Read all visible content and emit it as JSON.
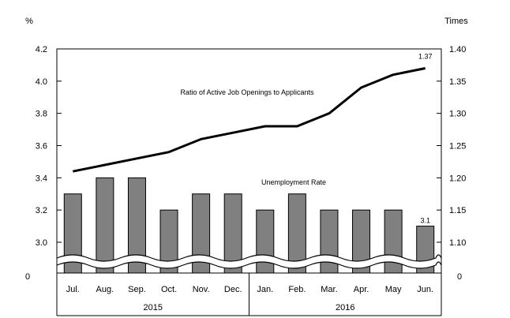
{
  "chart_data": {
    "type": "bar",
    "left_unit": "%",
    "right_unit": "Times",
    "categories": [
      "Jul.",
      "Aug.",
      "Sep.",
      "Oct.",
      "Nov.",
      "Dec.",
      "Jan.",
      "Feb.",
      "Mar.",
      "Apr.",
      "May",
      "Jun."
    ],
    "years": [
      {
        "label": "2015",
        "start": 0,
        "end": 5
      },
      {
        "label": "2016",
        "start": 6,
        "end": 11
      }
    ],
    "series": [
      {
        "name": "Unemployment Rate",
        "type": "bar",
        "axis": "left",
        "values": [
          3.3,
          3.4,
          3.4,
          3.2,
          3.3,
          3.3,
          3.2,
          3.3,
          3.2,
          3.2,
          3.2,
          3.1
        ],
        "color": "#808080"
      },
      {
        "name": "Ratio of Active Job Openings to Applicants",
        "type": "line",
        "axis": "right",
        "values": [
          1.21,
          1.22,
          1.23,
          1.24,
          1.26,
          1.27,
          1.28,
          1.28,
          1.3,
          1.34,
          1.36,
          1.37
        ],
        "color": "#000000"
      }
    ],
    "data_labels": [
      {
        "series": 0,
        "index": 11,
        "text": "3.1"
      },
      {
        "series": 1,
        "index": 11,
        "text": "1.37"
      }
    ],
    "left_axis": {
      "ylim": [
        2.9,
        4.2
      ],
      "ticks": [
        "3.0",
        "3.2",
        "3.4",
        "3.6",
        "3.8",
        "4.0",
        "4.2"
      ],
      "zero_label": "0"
    },
    "right_axis": {
      "ylim": [
        1.075,
        1.4
      ],
      "ticks": [
        "1.10",
        "1.15",
        "1.20",
        "1.25",
        "1.30",
        "1.35",
        "1.40"
      ],
      "zero_label": "0"
    },
    "axis_break": true,
    "grid": false
  }
}
